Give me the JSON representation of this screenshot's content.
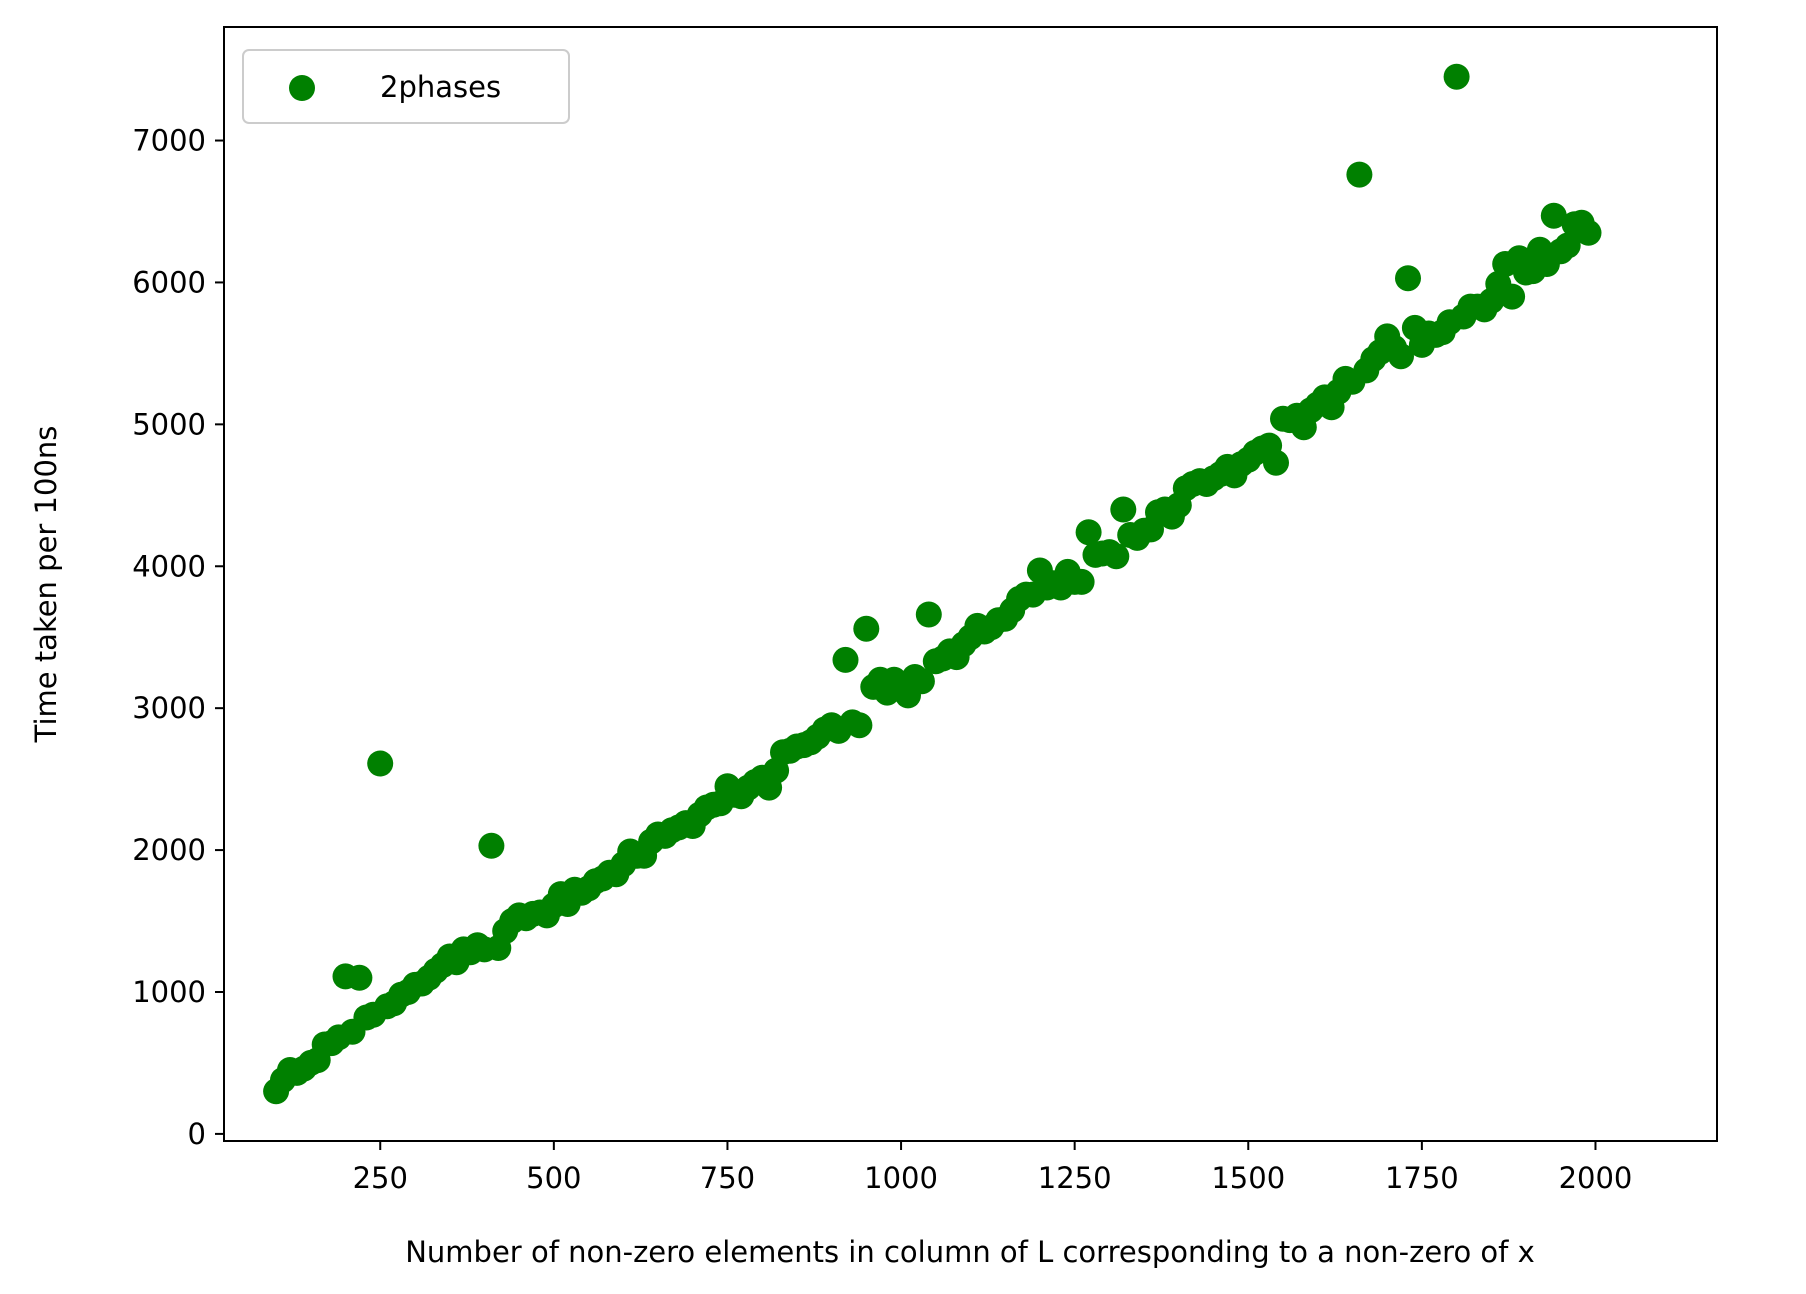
{
  "chart_data": {
    "type": "scatter",
    "title": "",
    "xlabel": "Number of non-zero elements in column of L corresponding to a non-zero of x",
    "ylabel": "Time taken per 100ns",
    "xlim": [
      25,
      2175
    ],
    "ylim": [
      -50,
      7800
    ],
    "xticks": [
      250,
      500,
      750,
      1000,
      1250,
      1500,
      1750,
      2000
    ],
    "yticks": [
      0,
      1000,
      2000,
      3000,
      4000,
      5000,
      6000,
      7000
    ],
    "grid": false,
    "legend": {
      "position": "upper-left",
      "entries": [
        "2phases"
      ]
    },
    "series": [
      {
        "name": "2phases",
        "color": "#008000",
        "marker": "circle",
        "points": [
          [
            100,
            300
          ],
          [
            110,
            380
          ],
          [
            120,
            450
          ],
          [
            130,
            430
          ],
          [
            140,
            460
          ],
          [
            150,
            500
          ],
          [
            160,
            520
          ],
          [
            170,
            630
          ],
          [
            180,
            640
          ],
          [
            190,
            680
          ],
          [
            200,
            1110
          ],
          [
            210,
            720
          ],
          [
            220,
            1100
          ],
          [
            230,
            820
          ],
          [
            240,
            840
          ],
          [
            250,
            2610
          ],
          [
            260,
            900
          ],
          [
            270,
            920
          ],
          [
            280,
            980
          ],
          [
            290,
            1000
          ],
          [
            300,
            1050
          ],
          [
            310,
            1060
          ],
          [
            320,
            1100
          ],
          [
            330,
            1150
          ],
          [
            340,
            1190
          ],
          [
            350,
            1250
          ],
          [
            360,
            1210
          ],
          [
            370,
            1300
          ],
          [
            380,
            1280
          ],
          [
            390,
            1330
          ],
          [
            400,
            1300
          ],
          [
            410,
            2030
          ],
          [
            420,
            1310
          ],
          [
            430,
            1430
          ],
          [
            440,
            1500
          ],
          [
            450,
            1540
          ],
          [
            460,
            1520
          ],
          [
            470,
            1550
          ],
          [
            480,
            1560
          ],
          [
            490,
            1540
          ],
          [
            500,
            1610
          ],
          [
            510,
            1690
          ],
          [
            520,
            1620
          ],
          [
            530,
            1720
          ],
          [
            540,
            1700
          ],
          [
            550,
            1730
          ],
          [
            560,
            1780
          ],
          [
            570,
            1800
          ],
          [
            580,
            1840
          ],
          [
            590,
            1830
          ],
          [
            600,
            1900
          ],
          [
            610,
            1990
          ],
          [
            620,
            1960
          ],
          [
            630,
            1960
          ],
          [
            640,
            2060
          ],
          [
            650,
            2110
          ],
          [
            660,
            2100
          ],
          [
            670,
            2140
          ],
          [
            680,
            2160
          ],
          [
            690,
            2190
          ],
          [
            700,
            2170
          ],
          [
            710,
            2250
          ],
          [
            720,
            2300
          ],
          [
            730,
            2320
          ],
          [
            740,
            2330
          ],
          [
            750,
            2450
          ],
          [
            760,
            2390
          ],
          [
            770,
            2380
          ],
          [
            780,
            2440
          ],
          [
            790,
            2480
          ],
          [
            800,
            2510
          ],
          [
            810,
            2440
          ],
          [
            820,
            2560
          ],
          [
            830,
            2690
          ],
          [
            840,
            2700
          ],
          [
            850,
            2730
          ],
          [
            860,
            2740
          ],
          [
            870,
            2760
          ],
          [
            880,
            2800
          ],
          [
            890,
            2850
          ],
          [
            900,
            2880
          ],
          [
            910,
            2840
          ],
          [
            920,
            3340
          ],
          [
            930,
            2900
          ],
          [
            940,
            2880
          ],
          [
            950,
            3560
          ],
          [
            960,
            3150
          ],
          [
            970,
            3200
          ],
          [
            980,
            3110
          ],
          [
            990,
            3200
          ],
          [
            1000,
            3170
          ],
          [
            1010,
            3090
          ],
          [
            1020,
            3220
          ],
          [
            1030,
            3190
          ],
          [
            1040,
            3660
          ],
          [
            1050,
            3330
          ],
          [
            1060,
            3350
          ],
          [
            1070,
            3400
          ],
          [
            1080,
            3360
          ],
          [
            1090,
            3450
          ],
          [
            1100,
            3500
          ],
          [
            1110,
            3580
          ],
          [
            1120,
            3540
          ],
          [
            1130,
            3570
          ],
          [
            1140,
            3620
          ],
          [
            1150,
            3630
          ],
          [
            1160,
            3690
          ],
          [
            1170,
            3770
          ],
          [
            1180,
            3800
          ],
          [
            1190,
            3800
          ],
          [
            1200,
            3970
          ],
          [
            1210,
            3850
          ],
          [
            1220,
            3880
          ],
          [
            1230,
            3850
          ],
          [
            1240,
            3960
          ],
          [
            1250,
            3890
          ],
          [
            1260,
            3890
          ],
          [
            1270,
            4240
          ],
          [
            1280,
            4080
          ],
          [
            1290,
            4090
          ],
          [
            1300,
            4100
          ],
          [
            1310,
            4070
          ],
          [
            1320,
            4400
          ],
          [
            1330,
            4220
          ],
          [
            1340,
            4200
          ],
          [
            1350,
            4250
          ],
          [
            1360,
            4260
          ],
          [
            1370,
            4380
          ],
          [
            1380,
            4400
          ],
          [
            1390,
            4350
          ],
          [
            1400,
            4430
          ],
          [
            1410,
            4550
          ],
          [
            1420,
            4580
          ],
          [
            1430,
            4600
          ],
          [
            1440,
            4580
          ],
          [
            1450,
            4620
          ],
          [
            1460,
            4650
          ],
          [
            1470,
            4700
          ],
          [
            1480,
            4640
          ],
          [
            1490,
            4720
          ],
          [
            1500,
            4750
          ],
          [
            1510,
            4800
          ],
          [
            1520,
            4830
          ],
          [
            1530,
            4850
          ],
          [
            1540,
            4730
          ],
          [
            1550,
            5040
          ],
          [
            1560,
            5030
          ],
          [
            1570,
            5060
          ],
          [
            1580,
            4980
          ],
          [
            1590,
            5100
          ],
          [
            1600,
            5140
          ],
          [
            1610,
            5190
          ],
          [
            1620,
            5120
          ],
          [
            1630,
            5230
          ],
          [
            1640,
            5320
          ],
          [
            1650,
            5300
          ],
          [
            1660,
            6760
          ],
          [
            1670,
            5380
          ],
          [
            1680,
            5460
          ],
          [
            1690,
            5510
          ],
          [
            1700,
            5620
          ],
          [
            1710,
            5540
          ],
          [
            1720,
            5480
          ],
          [
            1730,
            6030
          ],
          [
            1740,
            5680
          ],
          [
            1750,
            5560
          ],
          [
            1760,
            5640
          ],
          [
            1770,
            5630
          ],
          [
            1780,
            5650
          ],
          [
            1790,
            5720
          ],
          [
            1800,
            7450
          ],
          [
            1810,
            5760
          ],
          [
            1820,
            5830
          ],
          [
            1830,
            5830
          ],
          [
            1840,
            5810
          ],
          [
            1850,
            5870
          ],
          [
            1860,
            5990
          ],
          [
            1870,
            6130
          ],
          [
            1880,
            5900
          ],
          [
            1890,
            6170
          ],
          [
            1900,
            6070
          ],
          [
            1910,
            6080
          ],
          [
            1920,
            6230
          ],
          [
            1930,
            6130
          ],
          [
            1940,
            6470
          ],
          [
            1950,
            6220
          ],
          [
            1960,
            6260
          ],
          [
            1970,
            6410
          ],
          [
            1980,
            6420
          ],
          [
            1990,
            6350
          ]
        ]
      }
    ]
  }
}
